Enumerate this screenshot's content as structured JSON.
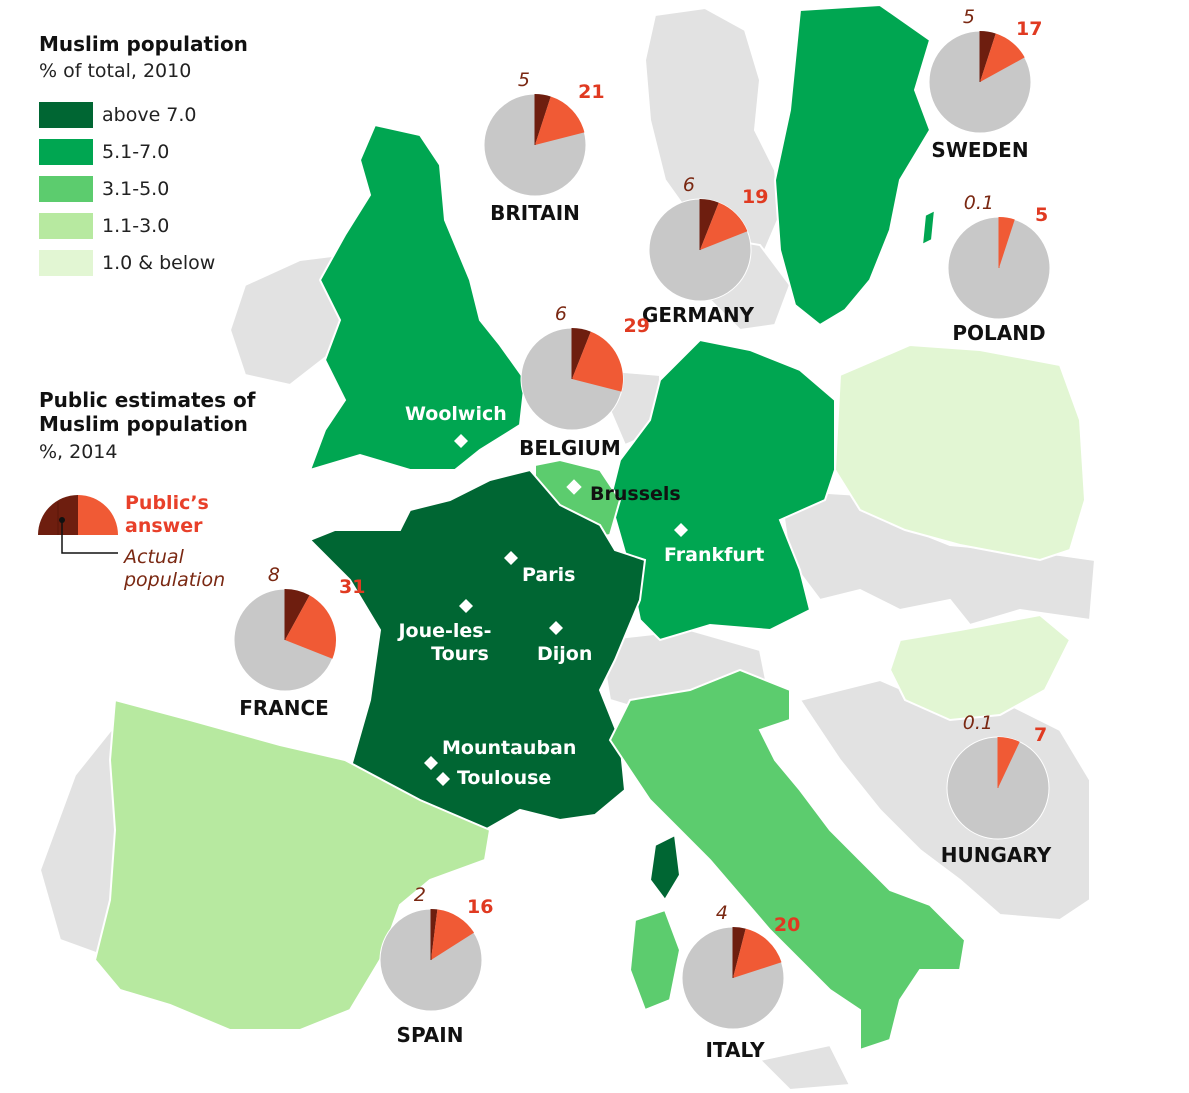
{
  "legend": {
    "title": "Muslim population",
    "subtitle": "% of total, 2010",
    "bins": [
      {
        "label": "above 7.0",
        "color": "#006633"
      },
      {
        "label": "5.1-7.0",
        "color": "#00a651"
      },
      {
        "label": "3.1-5.0",
        "color": "#5ccc6e"
      },
      {
        "label": "1.1-3.0",
        "color": "#b7e9a0"
      },
      {
        "label": "1.0 & below",
        "color": "#e2f6d3"
      }
    ]
  },
  "public_key": {
    "title": "Public estimates of Muslim population",
    "subtitle": "%, 2014",
    "answer_label": "Public’s answer",
    "actual_label": "Actual population"
  },
  "colors": {
    "other_land": "#e2e2e2",
    "pie_bg": "#c8c8c8",
    "actual": "#6e1e0f",
    "answer": "#f05a35",
    "actual_text": "#7a2812",
    "answer_text": "#e03a21"
  },
  "countries": [
    {
      "name": "BRITAIN",
      "actual": "5",
      "answer": "21"
    },
    {
      "name": "SWEDEN",
      "actual": "5",
      "answer": "17"
    },
    {
      "name": "GERMANY",
      "actual": "6",
      "answer": "19"
    },
    {
      "name": "POLAND",
      "actual": "0.1",
      "answer": "5"
    },
    {
      "name": "BELGIUM",
      "actual": "6",
      "answer": "29"
    },
    {
      "name": "FRANCE",
      "actual": "8",
      "answer": "31"
    },
    {
      "name": "HUNGARY",
      "actual": "0.1",
      "answer": "7"
    },
    {
      "name": "SPAIN",
      "actual": "2",
      "answer": "16"
    },
    {
      "name": "ITALY",
      "actual": "4",
      "answer": "20"
    }
  ],
  "cities": [
    "Woolwich",
    "Brussels",
    "Paris",
    "Frankfurt",
    "Joue-les-Tours",
    "Dijon",
    "Mountauban",
    "Toulouse"
  ]
}
